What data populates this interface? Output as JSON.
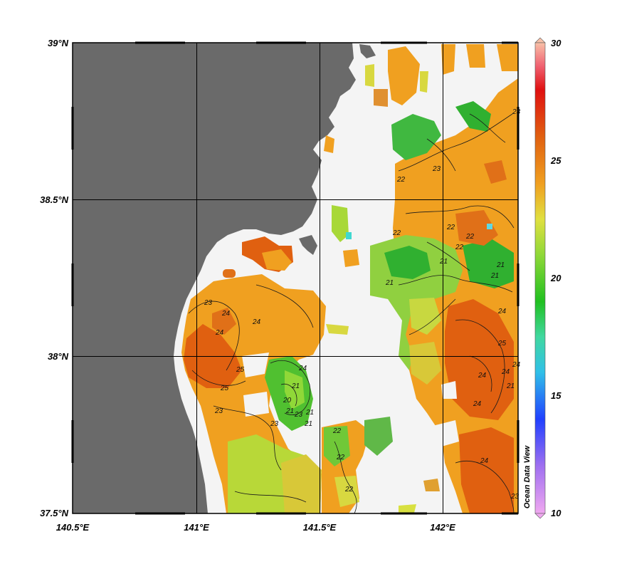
{
  "map": {
    "watermark": "Ocean Data View",
    "colors": {
      "land": "#6a6a6a",
      "no_data": "#f4f4f4",
      "frame": "#000000"
    },
    "lat_ticks": [
      "39°N",
      "38.5°N",
      "38°N",
      "37.5°N"
    ],
    "lon_ticks": [
      "140.5°E",
      "141°E",
      "141.5°E",
      "142°E"
    ],
    "colorbar": {
      "ticks": [
        "30",
        "25",
        "20",
        "15",
        "10"
      ],
      "range": [
        10,
        30
      ],
      "stops": [
        {
          "v": 10,
          "c": "#f0a8f0"
        },
        {
          "v": 12,
          "c": "#a070f0"
        },
        {
          "v": 14,
          "c": "#2040ff"
        },
        {
          "v": 16,
          "c": "#30c0e8"
        },
        {
          "v": 17.5,
          "c": "#40d8a0"
        },
        {
          "v": 19,
          "c": "#20c020"
        },
        {
          "v": 21,
          "c": "#90d838"
        },
        {
          "v": 22.5,
          "c": "#e0e040"
        },
        {
          "v": 24,
          "c": "#f0a020"
        },
        {
          "v": 26,
          "c": "#e06010"
        },
        {
          "v": 28,
          "c": "#e01010"
        },
        {
          "v": 29,
          "c": "#f06070"
        },
        {
          "v": 30,
          "c": "#f8c0a8"
        }
      ]
    },
    "contour_labels": [
      "23",
      "24",
      "24",
      "24",
      "25",
      "25",
      "23",
      "23",
      "24",
      "23",
      "21",
      "21",
      "20",
      "21",
      "21",
      "22",
      "22",
      "22",
      "22",
      "23",
      "21",
      "22",
      "22",
      "21",
      "22",
      "22",
      "21",
      "23",
      "21",
      "24",
      "25",
      "24",
      "24",
      "24",
      "23",
      "24",
      "24",
      "21"
    ]
  }
}
